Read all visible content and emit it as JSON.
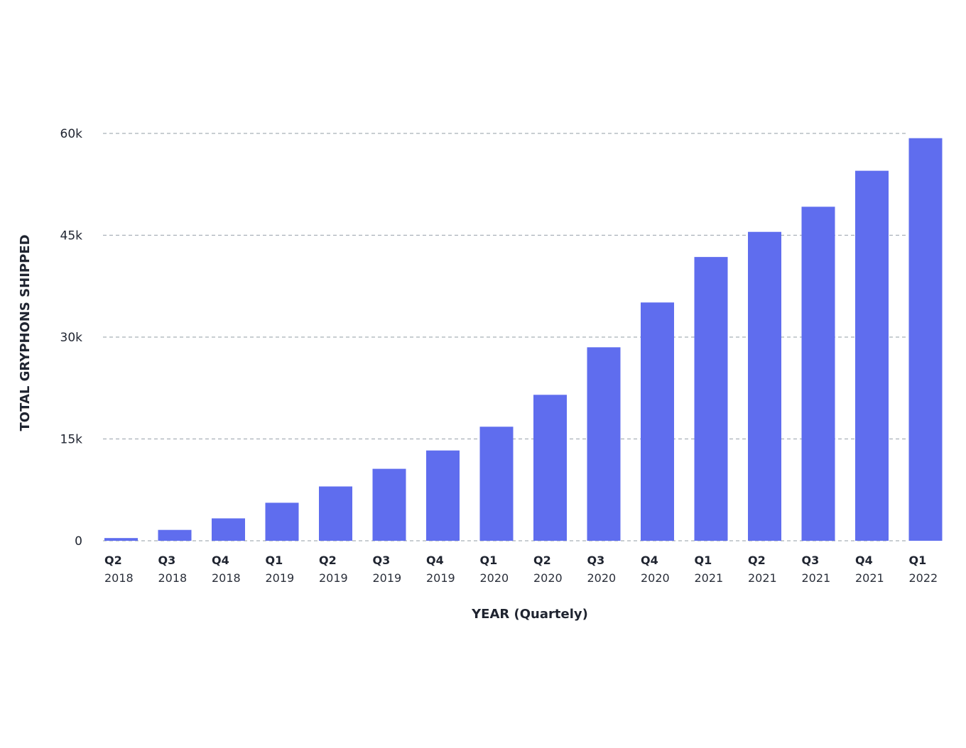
{
  "chart_data": {
    "type": "bar",
    "xlabel": "YEAR (Quartely)",
    "ylabel": "TOTAL GRYPHONS SHIPPED",
    "ylim": [
      0,
      60000
    ],
    "y_ticks": [
      0,
      15000,
      30000,
      45000,
      60000
    ],
    "y_tick_labels": [
      "0",
      "15k",
      "30k",
      "45k",
      "60k"
    ],
    "grid": "horizontal-dashed",
    "categories": [
      {
        "quarter": "Q2",
        "year": "2018"
      },
      {
        "quarter": "Q3",
        "year": "2018"
      },
      {
        "quarter": "Q4",
        "year": "2018"
      },
      {
        "quarter": "Q1",
        "year": "2019"
      },
      {
        "quarter": "Q2",
        "year": "2019"
      },
      {
        "quarter": "Q3",
        "year": "2019"
      },
      {
        "quarter": "Q4",
        "year": "2019"
      },
      {
        "quarter": "Q1",
        "year": "2020"
      },
      {
        "quarter": "Q2",
        "year": "2020"
      },
      {
        "quarter": "Q3",
        "year": "2020"
      },
      {
        "quarter": "Q4",
        "year": "2020"
      },
      {
        "quarter": "Q1",
        "year": "2021"
      },
      {
        "quarter": "Q2",
        "year": "2021"
      },
      {
        "quarter": "Q3",
        "year": "2021"
      },
      {
        "quarter": "Q4",
        "year": "2021"
      },
      {
        "quarter": "Q1",
        "year": "2022"
      }
    ],
    "values": [
      400,
      1600,
      3300,
      5600,
      8000,
      10600,
      13300,
      16800,
      21500,
      28500,
      35100,
      41800,
      45500,
      49200,
      54500,
      59300
    ],
    "colors": {
      "bar": "#5f6dee",
      "grid": "#a8b0b8",
      "text": "#1f2430"
    }
  }
}
